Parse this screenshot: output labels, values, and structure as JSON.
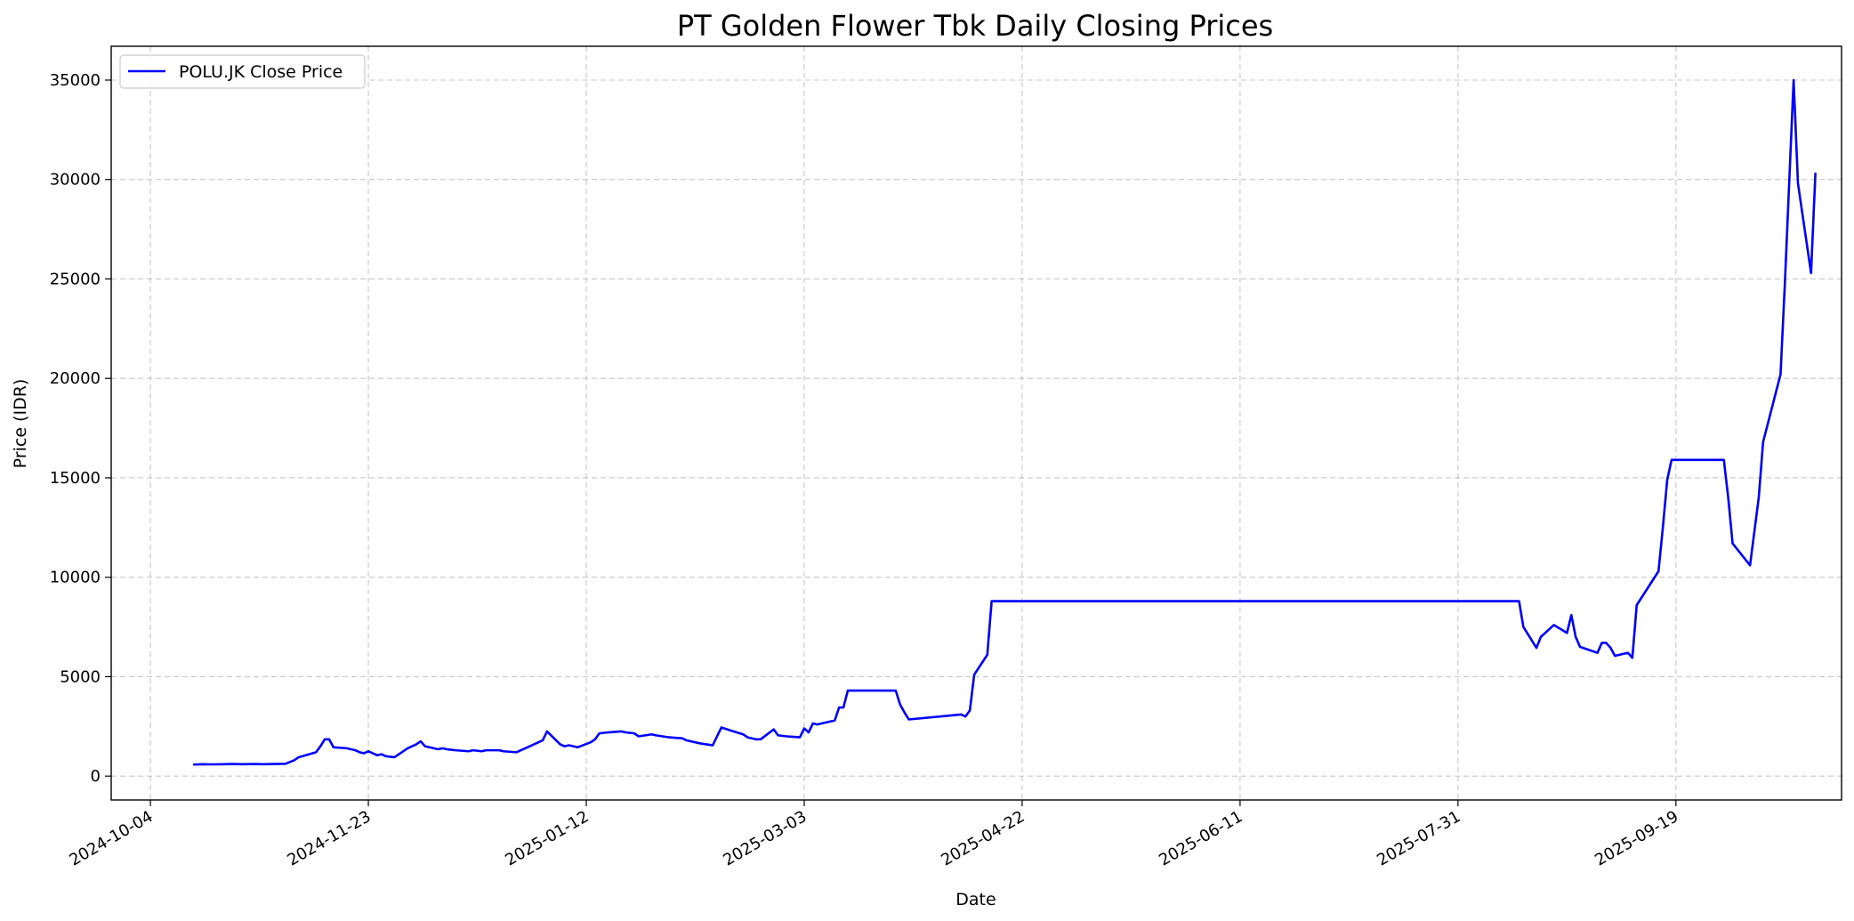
{
  "chart_data": {
    "type": "line",
    "title": "PT Golden Flower Tbk Daily Closing Prices",
    "xlabel": "Date",
    "ylabel": "Price (IDR)",
    "x_range": [
      "2024-09-25",
      "2025-10-27"
    ],
    "ylim": [
      -1200,
      36700
    ],
    "x_ticks": [
      "2024-10-04",
      "2024-11-23",
      "2025-01-12",
      "2025-03-03",
      "2025-04-22",
      "2025-06-11",
      "2025-07-31",
      "2025-09-19"
    ],
    "y_ticks": [
      0,
      5000,
      10000,
      15000,
      20000,
      25000,
      30000,
      35000
    ],
    "grid": true,
    "legend_position": "upper-left",
    "colors": {
      "series": "#0000ff",
      "grid": "#b0b0b0"
    },
    "series": [
      {
        "name": "POLU.JK Close Price",
        "points": [
          [
            "2024-10-14",
            580
          ],
          [
            "2024-10-16",
            600
          ],
          [
            "2024-10-18",
            590
          ],
          [
            "2024-10-21",
            600
          ],
          [
            "2024-10-23",
            610
          ],
          [
            "2024-10-25",
            600
          ],
          [
            "2024-10-28",
            610
          ],
          [
            "2024-10-30",
            600
          ],
          [
            "2024-11-01",
            610
          ],
          [
            "2024-11-04",
            620
          ],
          [
            "2024-11-06",
            800
          ],
          [
            "2024-11-07",
            950
          ],
          [
            "2024-11-11",
            1200
          ],
          [
            "2024-11-12",
            1500
          ],
          [
            "2024-11-13",
            1850
          ],
          [
            "2024-11-14",
            1850
          ],
          [
            "2024-11-15",
            1450
          ],
          [
            "2024-11-18",
            1400
          ],
          [
            "2024-11-19",
            1350
          ],
          [
            "2024-11-20",
            1300
          ],
          [
            "2024-11-21",
            1200
          ],
          [
            "2024-11-22",
            1150
          ],
          [
            "2024-11-23",
            1250
          ],
          [
            "2024-11-25",
            1050
          ],
          [
            "2024-11-26",
            1100
          ],
          [
            "2024-11-27",
            1000
          ],
          [
            "2024-11-29",
            950
          ],
          [
            "2024-12-02",
            1400
          ],
          [
            "2024-12-04",
            1600
          ],
          [
            "2024-12-05",
            1750
          ],
          [
            "2024-12-06",
            1500
          ],
          [
            "2024-12-09",
            1350
          ],
          [
            "2024-12-10",
            1400
          ],
          [
            "2024-12-11",
            1350
          ],
          [
            "2024-12-13",
            1300
          ],
          [
            "2024-12-16",
            1250
          ],
          [
            "2024-12-17",
            1300
          ],
          [
            "2024-12-19",
            1250
          ],
          [
            "2024-12-20",
            1300
          ],
          [
            "2024-12-23",
            1300
          ],
          [
            "2024-12-24",
            1250
          ],
          [
            "2024-12-27",
            1200
          ],
          [
            "2024-12-30",
            1500
          ],
          [
            "2025-01-02",
            1800
          ],
          [
            "2025-01-03",
            2250
          ],
          [
            "2025-01-06",
            1600
          ],
          [
            "2025-01-07",
            1500
          ],
          [
            "2025-01-08",
            1550
          ],
          [
            "2025-01-10",
            1450
          ],
          [
            "2025-01-13",
            1700
          ],
          [
            "2025-01-14",
            1850
          ],
          [
            "2025-01-15",
            2150
          ],
          [
            "2025-01-17",
            2200
          ],
          [
            "2025-01-20",
            2250
          ],
          [
            "2025-01-21",
            2200
          ],
          [
            "2025-01-23",
            2150
          ],
          [
            "2025-01-24",
            2000
          ],
          [
            "2025-01-27",
            2100
          ],
          [
            "2025-01-28",
            2050
          ],
          [
            "2025-01-31",
            1950
          ],
          [
            "2025-02-03",
            1900
          ],
          [
            "2025-02-04",
            1800
          ],
          [
            "2025-02-06",
            1700
          ],
          [
            "2025-02-07",
            1650
          ],
          [
            "2025-02-10",
            1550
          ],
          [
            "2025-02-12",
            2450
          ],
          [
            "2025-02-14",
            2300
          ],
          [
            "2025-02-17",
            2100
          ],
          [
            "2025-02-18",
            1950
          ],
          [
            "2025-02-20",
            1850
          ],
          [
            "2025-02-21",
            1850
          ],
          [
            "2025-02-24",
            2350
          ],
          [
            "2025-02-25",
            2050
          ],
          [
            "2025-02-27",
            2000
          ],
          [
            "2025-03-02",
            1950
          ],
          [
            "2025-03-03",
            2400
          ],
          [
            "2025-03-04",
            2200
          ],
          [
            "2025-03-05",
            2650
          ],
          [
            "2025-03-06",
            2600
          ],
          [
            "2025-03-07",
            2650
          ],
          [
            "2025-03-10",
            2800
          ],
          [
            "2025-03-11",
            3450
          ],
          [
            "2025-03-12",
            3450
          ],
          [
            "2025-03-13",
            4300
          ],
          [
            "2025-03-14",
            4300
          ],
          [
            "2025-03-24",
            4300
          ],
          [
            "2025-03-25",
            3600
          ],
          [
            "2025-03-26",
            3200
          ],
          [
            "2025-03-27",
            2850
          ],
          [
            "2025-04-08",
            3100
          ],
          [
            "2025-04-09",
            3000
          ],
          [
            "2025-04-10",
            3300
          ],
          [
            "2025-04-11",
            5100
          ],
          [
            "2025-04-14",
            6100
          ],
          [
            "2025-04-15",
            8800
          ],
          [
            "2025-08-14",
            8800
          ],
          [
            "2025-08-15",
            7500
          ],
          [
            "2025-08-18",
            6450
          ],
          [
            "2025-08-19",
            7000
          ],
          [
            "2025-08-21",
            7400
          ],
          [
            "2025-08-22",
            7600
          ],
          [
            "2025-08-25",
            7200
          ],
          [
            "2025-08-26",
            8100
          ],
          [
            "2025-08-27",
            7000
          ],
          [
            "2025-08-28",
            6500
          ],
          [
            "2025-09-01",
            6200
          ],
          [
            "2025-09-02",
            6700
          ],
          [
            "2025-09-03",
            6700
          ],
          [
            "2025-09-04",
            6450
          ],
          [
            "2025-09-05",
            6050
          ],
          [
            "2025-09-08",
            6200
          ],
          [
            "2025-09-09",
            5950
          ],
          [
            "2025-09-10",
            8600
          ],
          [
            "2025-09-15",
            10300
          ],
          [
            "2025-09-16",
            12500
          ],
          [
            "2025-09-17",
            14900
          ],
          [
            "2025-09-18",
            15900
          ],
          [
            "2025-09-30",
            15900
          ],
          [
            "2025-10-01",
            14000
          ],
          [
            "2025-10-02",
            11700
          ],
          [
            "2025-10-06",
            10600
          ],
          [
            "2025-10-08",
            14000
          ],
          [
            "2025-10-09",
            16800
          ],
          [
            "2025-10-13",
            20200
          ],
          [
            "2025-10-14",
            24800
          ],
          [
            "2025-10-16",
            35000
          ],
          [
            "2025-10-17",
            29800
          ],
          [
            "2025-10-20",
            25300
          ],
          [
            "2025-10-21",
            30300
          ]
        ]
      }
    ]
  }
}
